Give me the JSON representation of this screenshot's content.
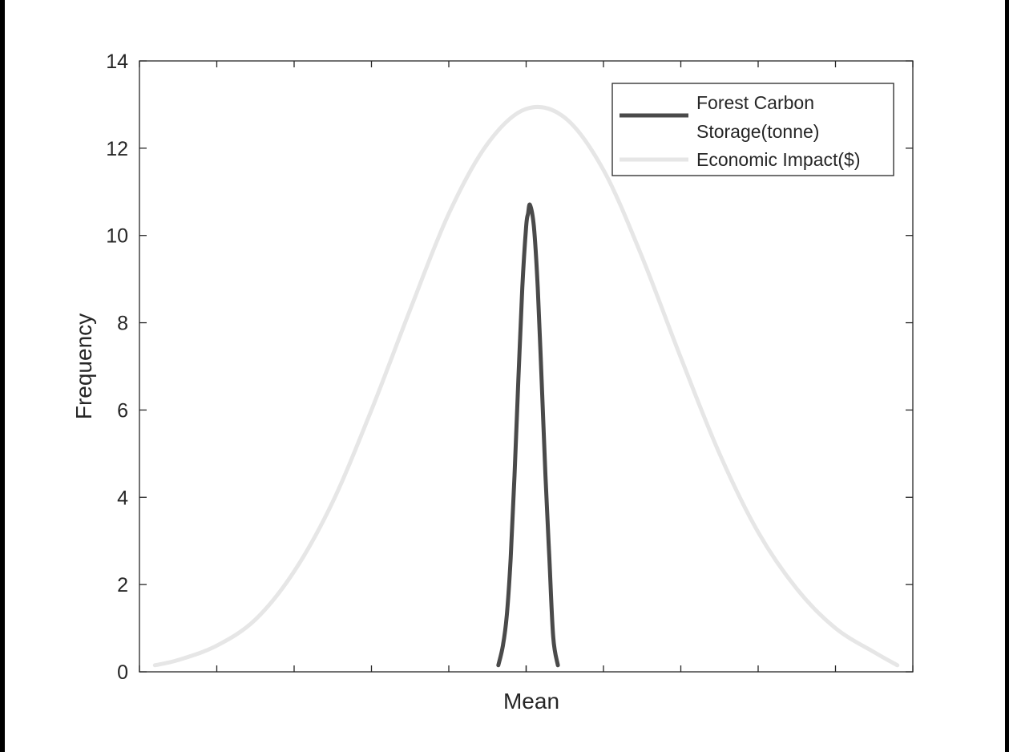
{
  "chart_data": {
    "type": "line",
    "xlabel": "Mean",
    "ylabel": "Frequency",
    "x_tick_labels": [
      "Mean"
    ],
    "ylim": [
      0,
      14
    ],
    "y_ticks": [
      0,
      2,
      4,
      6,
      8,
      10,
      12,
      14
    ],
    "grid": false,
    "legend_position": "top-right",
    "series": [
      {
        "name": "Forest Carbon Storage(tonne)",
        "color": "#4a4a4a",
        "x": [
          -0.072,
          -0.06,
          -0.05,
          -0.04,
          -0.03,
          -0.02,
          -0.01,
          0.0,
          0.005,
          0.01,
          0.02,
          0.03,
          0.04,
          0.05,
          0.06,
          0.07,
          0.082
        ],
        "y": [
          0.15,
          0.6,
          1.3,
          2.6,
          4.5,
          6.7,
          8.8,
          10.2,
          10.5,
          10.7,
          10.2,
          8.8,
          6.7,
          4.5,
          2.6,
          0.8,
          0.15
        ]
      },
      {
        "name": "Economic Impact($)",
        "color": "#e6e6e6",
        "x": [
          -0.96,
          -0.9,
          -0.8,
          -0.7,
          -0.6,
          -0.5,
          -0.4,
          -0.3,
          -0.2,
          -0.1,
          0.0,
          0.1,
          0.2,
          0.3,
          0.4,
          0.5,
          0.6,
          0.7,
          0.8,
          0.9,
          0.96
        ],
        "y": [
          0.15,
          0.27,
          0.6,
          1.2,
          2.3,
          3.9,
          6.0,
          8.3,
          10.5,
          12.1,
          12.9,
          12.7,
          11.5,
          9.5,
          7.2,
          5.0,
          3.2,
          1.9,
          1.0,
          0.45,
          0.15
        ]
      }
    ]
  },
  "legend": {
    "line1": "Forest Carbon",
    "line2": "Storage(tonne)",
    "line3": "Economic Impact($)"
  }
}
